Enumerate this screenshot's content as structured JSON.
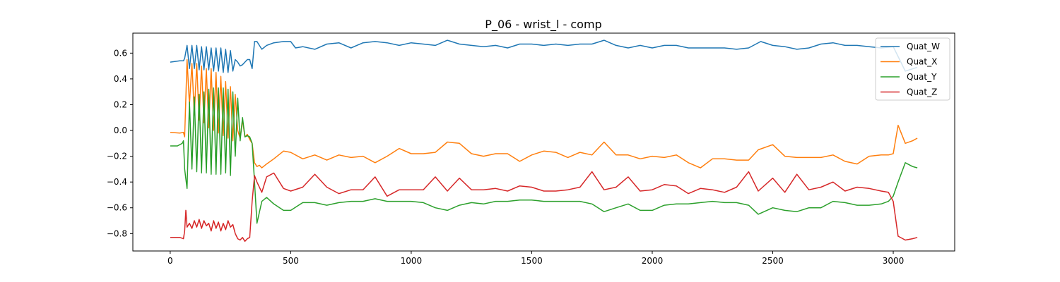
{
  "chart_data": {
    "type": "line",
    "title": "P_06 - wrist_l - comp",
    "xlabel": "",
    "ylabel": "",
    "xlim": [
      -155,
      3255
    ],
    "ylim": [
      -0.935,
      0.755
    ],
    "xticks": [
      0,
      500,
      1000,
      1500,
      2000,
      2500,
      3000
    ],
    "yticks": [
      -0.8,
      -0.6,
      -0.4,
      -0.2,
      0.0,
      0.2,
      0.4,
      0.6
    ],
    "ytick_labels": [
      "−0.8",
      "−0.6",
      "−0.4",
      "−0.2",
      "0.0",
      "0.2",
      "0.4",
      "0.6"
    ],
    "grid": false,
    "legend_position": "top-right",
    "series": [
      {
        "name": "Quat_W",
        "color": "#1f77b4",
        "x": [
          0,
          40,
          55,
          60,
          70,
          80,
          90,
          100,
          110,
          120,
          130,
          140,
          150,
          160,
          170,
          180,
          190,
          200,
          210,
          220,
          230,
          240,
          250,
          260,
          270,
          280,
          290,
          300,
          310,
          320,
          330,
          340,
          350,
          360,
          380,
          400,
          430,
          470,
          500,
          520,
          550,
          600,
          650,
          700,
          750,
          800,
          850,
          900,
          950,
          1000,
          1050,
          1100,
          1150,
          1200,
          1250,
          1300,
          1350,
          1400,
          1450,
          1500,
          1550,
          1600,
          1650,
          1700,
          1750,
          1800,
          1850,
          1900,
          1950,
          2000,
          2050,
          2100,
          2150,
          2200,
          2250,
          2300,
          2350,
          2400,
          2450,
          2500,
          2550,
          2600,
          2650,
          2700,
          2750,
          2800,
          2850,
          2900,
          2950,
          3000,
          3050,
          3100
        ],
        "y": [
          0.53,
          0.54,
          0.54,
          0.56,
          0.66,
          0.48,
          0.66,
          0.48,
          0.66,
          0.47,
          0.65,
          0.47,
          0.65,
          0.47,
          0.64,
          0.46,
          0.64,
          0.46,
          0.64,
          0.45,
          0.63,
          0.45,
          0.62,
          0.46,
          0.55,
          0.53,
          0.5,
          0.51,
          0.53,
          0.55,
          0.55,
          0.48,
          0.69,
          0.69,
          0.63,
          0.66,
          0.68,
          0.69,
          0.69,
          0.64,
          0.65,
          0.63,
          0.67,
          0.68,
          0.64,
          0.68,
          0.69,
          0.68,
          0.66,
          0.68,
          0.67,
          0.66,
          0.7,
          0.67,
          0.66,
          0.65,
          0.66,
          0.64,
          0.67,
          0.67,
          0.66,
          0.67,
          0.66,
          0.67,
          0.67,
          0.7,
          0.66,
          0.64,
          0.66,
          0.64,
          0.66,
          0.66,
          0.64,
          0.64,
          0.64,
          0.64,
          0.63,
          0.64,
          0.69,
          0.66,
          0.65,
          0.63,
          0.64,
          0.67,
          0.68,
          0.66,
          0.66,
          0.65,
          0.64,
          0.65,
          0.46,
          0.49
        ]
      },
      {
        "name": "Quat_X",
        "color": "#ff7f0e",
        "x": [
          0,
          40,
          55,
          60,
          70,
          80,
          90,
          100,
          110,
          120,
          130,
          140,
          150,
          160,
          170,
          180,
          190,
          200,
          210,
          220,
          230,
          240,
          250,
          260,
          270,
          280,
          290,
          300,
          310,
          320,
          330,
          340,
          350,
          360,
          370,
          380,
          400,
          430,
          470,
          500,
          550,
          600,
          650,
          700,
          750,
          800,
          850,
          900,
          950,
          1000,
          1050,
          1100,
          1150,
          1200,
          1250,
          1300,
          1350,
          1400,
          1450,
          1500,
          1550,
          1600,
          1650,
          1700,
          1750,
          1800,
          1850,
          1900,
          1950,
          2000,
          2050,
          2100,
          2150,
          2200,
          2250,
          2300,
          2350,
          2400,
          2440,
          2500,
          2550,
          2600,
          2650,
          2700,
          2750,
          2800,
          2850,
          2900,
          2950,
          2980,
          3000,
          3020,
          3050,
          3080,
          3100
        ],
        "y": [
          -0.015,
          -0.02,
          -0.015,
          -0.05,
          0.55,
          0.2,
          0.52,
          0.12,
          0.52,
          0.08,
          0.5,
          0.06,
          0.48,
          0.02,
          0.48,
          0.0,
          0.45,
          -0.02,
          0.42,
          -0.04,
          0.38,
          -0.06,
          0.34,
          -0.08,
          0.28,
          0.0,
          -0.06,
          0.08,
          -0.05,
          -0.03,
          -0.07,
          -0.1,
          -0.25,
          -0.28,
          -0.27,
          -0.29,
          -0.26,
          -0.22,
          -0.16,
          -0.17,
          -0.22,
          -0.19,
          -0.23,
          -0.19,
          -0.21,
          -0.2,
          -0.25,
          -0.2,
          -0.14,
          -0.18,
          -0.18,
          -0.17,
          -0.09,
          -0.1,
          -0.18,
          -0.2,
          -0.18,
          -0.18,
          -0.24,
          -0.19,
          -0.16,
          -0.17,
          -0.21,
          -0.17,
          -0.19,
          -0.09,
          -0.19,
          -0.19,
          -0.22,
          -0.2,
          -0.21,
          -0.19,
          -0.25,
          -0.29,
          -0.22,
          -0.22,
          -0.23,
          -0.23,
          -0.15,
          -0.11,
          -0.2,
          -0.21,
          -0.21,
          -0.21,
          -0.19,
          -0.24,
          -0.26,
          -0.2,
          -0.19,
          -0.19,
          -0.18,
          0.04,
          -0.1,
          -0.08,
          -0.06
        ]
      },
      {
        "name": "Quat_Y",
        "color": "#2ca02c",
        "x": [
          0,
          30,
          50,
          55,
          60,
          70,
          80,
          90,
          100,
          110,
          120,
          130,
          140,
          150,
          160,
          170,
          180,
          190,
          200,
          210,
          220,
          230,
          240,
          250,
          260,
          270,
          280,
          290,
          300,
          310,
          320,
          330,
          340,
          350,
          360,
          380,
          400,
          430,
          470,
          500,
          550,
          600,
          650,
          700,
          750,
          800,
          850,
          900,
          950,
          1000,
          1050,
          1100,
          1150,
          1200,
          1250,
          1300,
          1350,
          1400,
          1450,
          1500,
          1550,
          1600,
          1650,
          1700,
          1750,
          1800,
          1850,
          1900,
          1950,
          2000,
          2050,
          2100,
          2150,
          2200,
          2250,
          2300,
          2350,
          2400,
          2440,
          2500,
          2550,
          2600,
          2650,
          2700,
          2750,
          2800,
          2850,
          2900,
          2950,
          2980,
          3000,
          3020,
          3050,
          3080,
          3100
        ],
        "y": [
          -0.12,
          -0.12,
          -0.1,
          -0.08,
          -0.3,
          -0.45,
          0.22,
          -0.3,
          0.26,
          -0.32,
          0.28,
          -0.33,
          0.3,
          -0.33,
          0.32,
          -0.34,
          0.33,
          -0.34,
          0.33,
          -0.34,
          0.33,
          -0.33,
          0.32,
          -0.35,
          0.3,
          -0.2,
          0.25,
          -0.08,
          0.1,
          -0.05,
          -0.04,
          -0.05,
          -0.1,
          -0.4,
          -0.72,
          -0.55,
          -0.52,
          -0.57,
          -0.62,
          -0.62,
          -0.56,
          -0.56,
          -0.58,
          -0.56,
          -0.55,
          -0.55,
          -0.53,
          -0.55,
          -0.55,
          -0.55,
          -0.56,
          -0.6,
          -0.62,
          -0.58,
          -0.56,
          -0.57,
          -0.55,
          -0.55,
          -0.54,
          -0.54,
          -0.55,
          -0.55,
          -0.55,
          -0.55,
          -0.57,
          -0.63,
          -0.6,
          -0.57,
          -0.62,
          -0.62,
          -0.58,
          -0.57,
          -0.57,
          -0.56,
          -0.55,
          -0.56,
          -0.56,
          -0.58,
          -0.65,
          -0.6,
          -0.62,
          -0.63,
          -0.6,
          -0.6,
          -0.55,
          -0.56,
          -0.58,
          -0.58,
          -0.57,
          -0.55,
          -0.51,
          -0.4,
          -0.25,
          -0.28,
          -0.29
        ]
      },
      {
        "name": "Quat_Z",
        "color": "#d62728",
        "x": [
          0,
          40,
          55,
          60,
          65,
          70,
          80,
          90,
          100,
          110,
          120,
          130,
          140,
          150,
          160,
          170,
          180,
          190,
          200,
          210,
          220,
          230,
          240,
          250,
          260,
          270,
          280,
          290,
          300,
          310,
          320,
          330,
          340,
          350,
          360,
          380,
          400,
          430,
          470,
          500,
          550,
          600,
          650,
          700,
          750,
          800,
          850,
          900,
          950,
          1000,
          1050,
          1100,
          1150,
          1200,
          1250,
          1300,
          1350,
          1400,
          1450,
          1500,
          1550,
          1600,
          1650,
          1700,
          1750,
          1800,
          1850,
          1900,
          1950,
          2000,
          2050,
          2100,
          2150,
          2200,
          2250,
          2300,
          2350,
          2400,
          2440,
          2500,
          2550,
          2600,
          2650,
          2700,
          2750,
          2800,
          2850,
          2900,
          2950,
          2980,
          3000,
          3020,
          3050,
          3080,
          3100
        ],
        "y": [
          -0.83,
          -0.83,
          -0.84,
          -0.78,
          -0.62,
          -0.75,
          -0.72,
          -0.76,
          -0.7,
          -0.75,
          -0.69,
          -0.76,
          -0.7,
          -0.74,
          -0.72,
          -0.78,
          -0.7,
          -0.76,
          -0.71,
          -0.78,
          -0.72,
          -0.77,
          -0.7,
          -0.75,
          -0.73,
          -0.8,
          -0.84,
          -0.85,
          -0.83,
          -0.86,
          -0.84,
          -0.83,
          -0.55,
          -0.35,
          -0.4,
          -0.48,
          -0.36,
          -0.33,
          -0.45,
          -0.47,
          -0.44,
          -0.34,
          -0.44,
          -0.49,
          -0.46,
          -0.46,
          -0.36,
          -0.51,
          -0.46,
          -0.46,
          -0.46,
          -0.36,
          -0.47,
          -0.37,
          -0.46,
          -0.46,
          -0.45,
          -0.47,
          -0.43,
          -0.44,
          -0.47,
          -0.47,
          -0.46,
          -0.44,
          -0.32,
          -0.46,
          -0.44,
          -0.36,
          -0.47,
          -0.46,
          -0.42,
          -0.43,
          -0.49,
          -0.45,
          -0.46,
          -0.48,
          -0.44,
          -0.32,
          -0.47,
          -0.37,
          -0.48,
          -0.34,
          -0.46,
          -0.44,
          -0.4,
          -0.47,
          -0.44,
          -0.45,
          -0.47,
          -0.48,
          -0.55,
          -0.82,
          -0.85,
          -0.84,
          -0.83
        ]
      }
    ]
  }
}
